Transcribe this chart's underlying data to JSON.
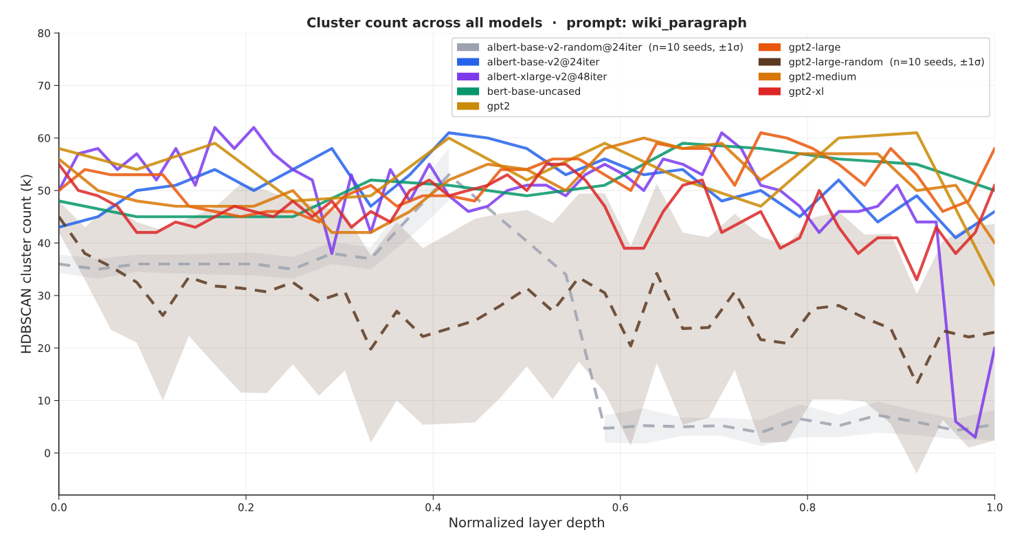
{
  "chart_data": {
    "type": "line",
    "title": "Cluster count across all models  ·  prompt: wiki_paragraph",
    "xlabel": "Normalized layer depth",
    "ylabel": "HDBSCAN cluster count (k)",
    "xlim": [
      0,
      1
    ],
    "xticks": [
      {
        "value": 0,
        "label": "0.0"
      },
      {
        "value": 0.2,
        "label": "0.2"
      },
      {
        "value": 0.4,
        "label": "0.4"
      },
      {
        "value": 0.6,
        "label": "0.6"
      },
      {
        "value": 0.8,
        "label": "0.8"
      },
      {
        "value": 1,
        "label": "1.0"
      }
    ],
    "ylim": [
      -8,
      80
    ],
    "yticks": [
      0,
      10,
      20,
      30,
      40,
      50,
      60,
      70,
      80
    ],
    "grid": true,
    "legend": "top right",
    "series": [
      {
        "name": "albert-base-v2-random@24iter  (n=10 seeds, ±1σ)",
        "color": "#9ca3af",
        "line_style": "dashed",
        "x": [
          0,
          0.0417,
          0.0833,
          0.125,
          0.1667,
          0.2083,
          0.25,
          0.2917,
          0.3333,
          0.375,
          0.4167,
          0.4583,
          0.5,
          0.5417,
          0.5833,
          0.625,
          0.6667,
          0.7083,
          0.75,
          0.7917,
          0.8333,
          0.875,
          0.9167,
          0.9583,
          1
        ],
        "values": [
          36,
          35,
          36,
          36,
          36,
          36,
          35,
          38,
          37,
          45,
          53,
          null,
          null,
          34,
          4.7,
          5.2,
          5,
          5.2,
          3.9,
          6.5,
          5.2,
          7.2,
          5.9,
          4.3,
          5.4
        ],
        "lower": [
          34.3,
          33.2,
          34.5,
          34.2,
          34,
          33.8,
          33.2,
          36,
          35,
          41,
          48,
          null,
          null,
          null,
          2,
          1.8,
          3.3,
          3.3,
          1.3,
          3,
          3,
          3.9,
          3.4,
          2.6,
          2.4
        ],
        "upper": [
          37.8,
          37,
          37.8,
          37.8,
          38,
          38.2,
          37.3,
          40.2,
          39.2,
          49,
          58,
          null,
          null,
          null,
          7.2,
          8.5,
          6.7,
          6.7,
          6.3,
          9.3,
          7.3,
          9.8,
          8,
          6.5,
          8.2
        ]
      },
      {
        "name": "albert-base-v2@24iter",
        "color": "#2563eb",
        "x": [
          0,
          0.0417,
          0.0833,
          0.125,
          0.1667,
          0.2083,
          0.25,
          0.2917,
          0.3333,
          0.375,
          0.4167,
          0.4583,
          0.5,
          0.5417,
          0.5833,
          0.625,
          0.6667,
          0.7083,
          0.75,
          0.7917,
          0.8333,
          0.875,
          0.9167,
          0.9583,
          1
        ],
        "values": [
          43,
          45,
          50,
          51,
          54,
          50,
          54,
          58,
          47,
          53,
          61,
          60,
          58,
          53,
          56,
          53,
          54,
          48,
          50,
          45,
          52,
          44,
          49,
          41,
          46
        ]
      },
      {
        "name": "albert-xlarge-v2@48iter",
        "color": "#7c3aed",
        "x": [
          0,
          0.0208,
          0.0417,
          0.0625,
          0.0833,
          0.1042,
          0.125,
          0.1458,
          0.1667,
          0.1875,
          0.2083,
          0.2292,
          0.25,
          0.2708,
          0.2917,
          0.3125,
          0.3333,
          0.3542,
          0.375,
          0.3958,
          0.4167,
          0.4375,
          0.4583,
          0.4792,
          0.5,
          0.5208,
          0.5417,
          0.5625,
          0.5833,
          0.6042,
          0.625,
          0.6458,
          0.6667,
          0.6875,
          0.7083,
          0.7292,
          0.75,
          0.7708,
          0.7917,
          0.8125,
          0.8333,
          0.8542,
          0.875,
          0.8958,
          0.9167,
          0.9375,
          0.9583,
          0.9792,
          1
        ],
        "values": [
          50,
          57,
          58,
          54,
          57,
          52,
          58,
          51,
          62,
          58,
          62,
          57,
          54,
          52,
          38,
          53,
          42,
          54,
          48,
          55,
          49,
          46,
          47,
          50,
          51,
          51,
          49,
          53,
          55,
          53,
          50,
          56,
          55,
          53,
          61,
          58,
          51,
          50,
          47,
          42,
          46,
          46,
          47,
          51,
          44,
          44,
          6,
          3,
          20
        ]
      },
      {
        "name": "bert-base-uncased",
        "color": "#059669",
        "x": [
          0,
          0.0833,
          0.1667,
          0.25,
          0.3333,
          0.4167,
          0.5,
          0.5833,
          0.6667,
          0.75,
          0.8333,
          0.9167,
          1
        ],
        "values": [
          48,
          45,
          45,
          45,
          52,
          51,
          49,
          51,
          59,
          58,
          56,
          55,
          50
        ]
      },
      {
        "name": "gpt2",
        "color": "#ca8a04",
        "x": [
          0,
          0.0833,
          0.1667,
          0.25,
          0.3333,
          0.4167,
          0.5,
          0.5833,
          0.6667,
          0.75,
          0.8333,
          0.9167,
          1
        ],
        "values": [
          58,
          54,
          59,
          48,
          49,
          60,
          52,
          59,
          52,
          47,
          60,
          61,
          32
        ]
      },
      {
        "name": "gpt2-large",
        "color": "#ea580c",
        "x": [
          0,
          0.0278,
          0.0556,
          0.0833,
          0.1111,
          0.1389,
          0.1667,
          0.1944,
          0.2222,
          0.25,
          0.2778,
          0.3056,
          0.3333,
          0.3611,
          0.3889,
          0.4167,
          0.4444,
          0.4722,
          0.5,
          0.5278,
          0.5556,
          0.5833,
          0.6111,
          0.6389,
          0.6667,
          0.6944,
          0.7222,
          0.75,
          0.7778,
          0.8056,
          0.8333,
          0.8611,
          0.8889,
          0.9167,
          0.9444,
          0.9722,
          1
        ],
        "values": [
          50,
          54,
          53,
          53,
          53,
          47,
          46,
          45,
          46,
          46,
          44,
          49,
          51,
          47,
          49,
          49,
          48,
          54,
          54,
          56,
          56,
          53,
          50,
          59,
          58,
          58,
          51,
          61,
          60,
          58,
          55,
          51,
          58,
          53,
          46,
          48,
          58
        ]
      },
      {
        "name": "gpt2-large-random  (n=10 seeds, ±1σ)",
        "color": "#5c3a21",
        "line_style": "dashed",
        "x": [
          0,
          0.0278,
          0.0556,
          0.0833,
          0.1111,
          0.1389,
          0.1667,
          0.1944,
          0.2222,
          0.25,
          0.2778,
          0.3056,
          0.3333,
          0.3611,
          0.3889,
          0.4167,
          0.4444,
          0.4722,
          0.5,
          0.5278,
          0.5556,
          0.5833,
          0.6111,
          0.6389,
          0.6667,
          0.6944,
          0.7222,
          0.75,
          0.7778,
          0.8056,
          0.8333,
          0.8611,
          0.8889,
          0.9167,
          0.9444,
          0.9722,
          1
        ],
        "values": [
          45,
          38,
          35.5,
          32.5,
          26.2,
          33.5,
          31.8,
          31.4,
          30.7,
          32.5,
          29,
          30.7,
          19.8,
          27,
          22.2,
          23.7,
          25.2,
          28.1,
          31.4,
          27,
          33.4,
          30.5,
          20.4,
          34.2,
          23.7,
          23.9,
          30.7,
          21.6,
          20.9,
          27.5,
          28.1,
          25.7,
          23.7,
          13.2,
          23.3,
          22.1,
          23
        ],
        "lower": [
          42,
          33,
          23.5,
          21,
          10,
          22.3,
          16.8,
          11.5,
          11.4,
          16.9,
          10.9,
          15.7,
          2,
          10,
          5.4,
          5.6,
          5.8,
          10.6,
          16.5,
          10.2,
          17.4,
          11.5,
          1.4,
          17.1,
          5.4,
          6.7,
          15.8,
          2,
          2.1,
          10.2,
          10.2,
          9.8,
          5.6,
          -3.9,
          6.3,
          1,
          2.4
        ],
        "upper": [
          48,
          43,
          47.5,
          44,
          42.4,
          44.7,
          46.8,
          51.3,
          50,
          48.1,
          47.1,
          45.7,
          37.6,
          44,
          39,
          41.8,
          44.6,
          45.6,
          46.3,
          43.8,
          49.4,
          49.5,
          39.4,
          51.3,
          42,
          41.1,
          45.6,
          41.2,
          39.7,
          44.8,
          46,
          41.6,
          41.8,
          30.3,
          40.3,
          43.2,
          43.6
        ]
      },
      {
        "name": "gpt2-medium",
        "color": "#d97706",
        "x": [
          0,
          0.0417,
          0.0833,
          0.125,
          0.1667,
          0.2083,
          0.25,
          0.2917,
          0.3333,
          0.375,
          0.4167,
          0.4583,
          0.5,
          0.5417,
          0.5833,
          0.625,
          0.6667,
          0.7083,
          0.75,
          0.7917,
          0.8333,
          0.875,
          0.9167,
          0.9583,
          1
        ],
        "values": [
          56,
          50,
          48,
          47,
          47,
          47,
          50,
          42,
          42,
          46,
          52,
          55,
          54,
          50,
          58,
          60,
          58,
          59,
          52,
          57,
          57,
          57,
          50,
          51,
          40
        ]
      },
      {
        "name": "gpt2-xl",
        "color": "#dc2626",
        "x": [
          0,
          0.0208,
          0.0417,
          0.0625,
          0.0833,
          0.1042,
          0.125,
          0.1458,
          0.1667,
          0.1875,
          0.2083,
          0.2292,
          0.25,
          0.2708,
          0.2917,
          0.3125,
          0.3333,
          0.3542,
          0.375,
          0.3958,
          0.4167,
          0.4375,
          0.4583,
          0.4792,
          0.5,
          0.5208,
          0.5417,
          0.5625,
          0.5833,
          0.6042,
          0.625,
          0.6458,
          0.6667,
          0.6875,
          0.7083,
          0.7292,
          0.75,
          0.7708,
          0.7917,
          0.8125,
          0.8333,
          0.8542,
          0.875,
          0.8958,
          0.9167,
          0.9375,
          0.9583,
          0.9792,
          1
        ],
        "values": [
          55,
          50,
          49,
          47,
          42,
          42,
          44,
          43,
          45,
          47,
          46,
          45,
          48,
          45,
          48,
          43,
          46,
          44,
          50,
          52,
          49,
          50,
          51,
          53,
          50,
          55,
          55,
          52,
          47,
          39,
          39,
          46,
          51,
          52,
          42,
          44,
          46,
          39,
          41,
          50,
          43,
          38,
          41,
          41,
          33,
          43,
          38,
          42,
          51
        ]
      }
    ]
  }
}
